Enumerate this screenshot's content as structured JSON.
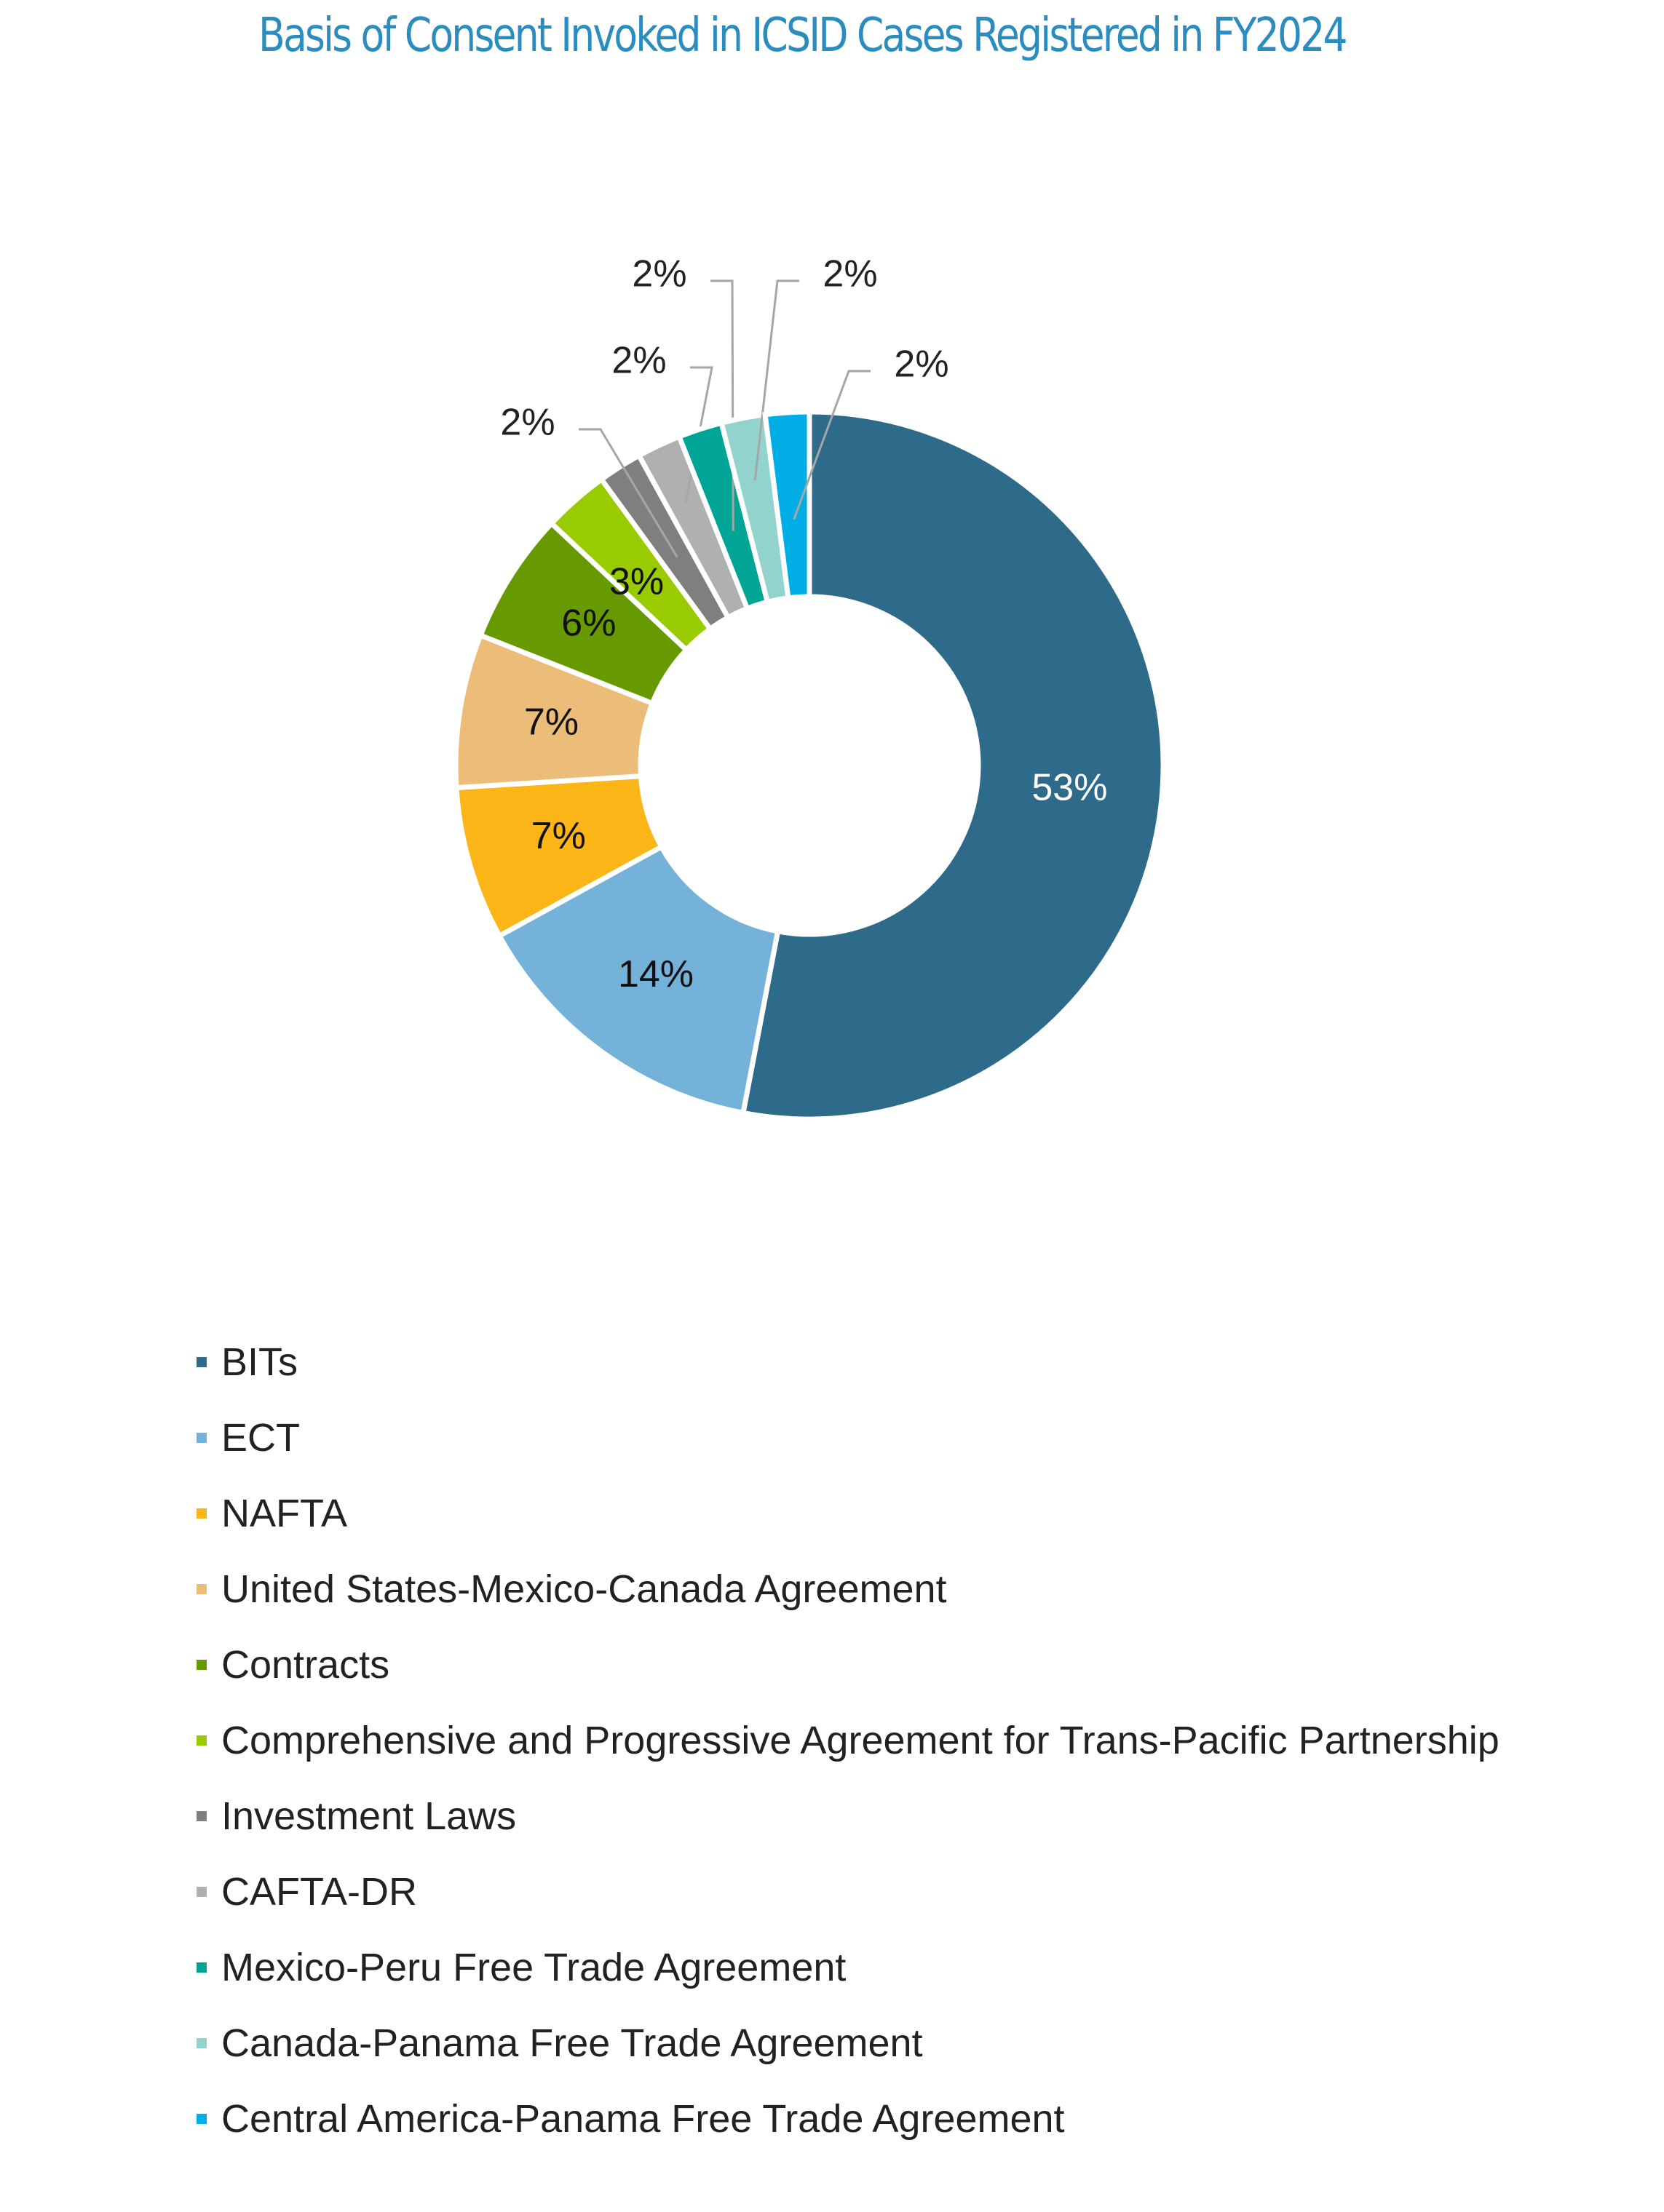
{
  "chart_data": {
    "type": "pie",
    "variant": "donut",
    "title": "Basis of Consent Invoked in ICSID Cases Registered in FY2024",
    "legend_position": "bottom",
    "unit": "%",
    "slices": [
      {
        "label": "BITs",
        "value": 53,
        "display": "53%",
        "color": "#2e6a8a"
      },
      {
        "label": "ECT",
        "value": 14,
        "display": "14%",
        "color": "#74b2da"
      },
      {
        "label": "NAFTA",
        "value": 7,
        "display": "7%",
        "color": "#fbb516"
      },
      {
        "label": "United States-Mexico-Canada Agreement",
        "value": 7,
        "display": "7%",
        "color": "#ebbd79"
      },
      {
        "label": "Contracts",
        "value": 6,
        "display": "6%",
        "color": "#669a00"
      },
      {
        "label": "Comprehensive and Progressive Agreement for Trans-Pacific Partnership",
        "value": 3,
        "display": "3%",
        "color": "#99cc00"
      },
      {
        "label": "Investment Laws",
        "value": 2,
        "display": "2%",
        "color": "#7f7f7f"
      },
      {
        "label": "CAFTA-DR",
        "value": 2,
        "display": "2%",
        "color": "#b0b0b0"
      },
      {
        "label": "Mexico-Peru Free Trade Agreement",
        "value": 2,
        "display": "2%",
        "color": "#00a596"
      },
      {
        "label": "Canada-Panama Free Trade Agreement",
        "value": 2,
        "display": "2%",
        "color": "#92d3cd"
      },
      {
        "label": "Central America-Panama Free Trade Agreement",
        "value": 2,
        "display": "2%",
        "color": "#00aee6"
      }
    ]
  }
}
